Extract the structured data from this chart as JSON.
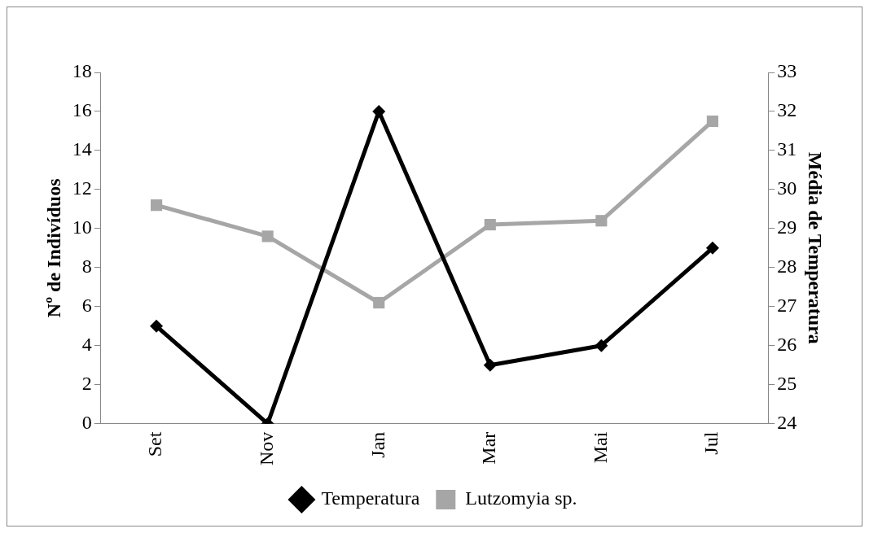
{
  "chart_data": {
    "type": "line",
    "categories": [
      "Set",
      "Nov",
      "Jan",
      "Mar",
      "Mai",
      "Jul"
    ],
    "series": [
      {
        "name": "Temperatura",
        "color": "#000000",
        "values": [
          5,
          0,
          16,
          3,
          4,
          9
        ],
        "marker": "diamond"
      },
      {
        "name": "Lutzomyia sp.",
        "color": "#a6a6a6",
        "values": [
          29.6,
          28.8,
          27.1,
          29.1,
          29.2,
          31.75
        ],
        "axis": "y2",
        "marker": "square"
      }
    ],
    "ylabel": "Nº de Indivíduos",
    "y2label": "Média de Temperatura",
    "ylim": [
      0,
      18
    ],
    "yticks": [
      0,
      2,
      4,
      6,
      8,
      10,
      12,
      14,
      16,
      18
    ],
    "y2lim": [
      24,
      33
    ],
    "y2ticks": [
      24,
      25,
      26,
      27,
      28,
      29,
      30,
      31,
      32,
      33
    ],
    "grid": false,
    "legend": "bottom"
  }
}
